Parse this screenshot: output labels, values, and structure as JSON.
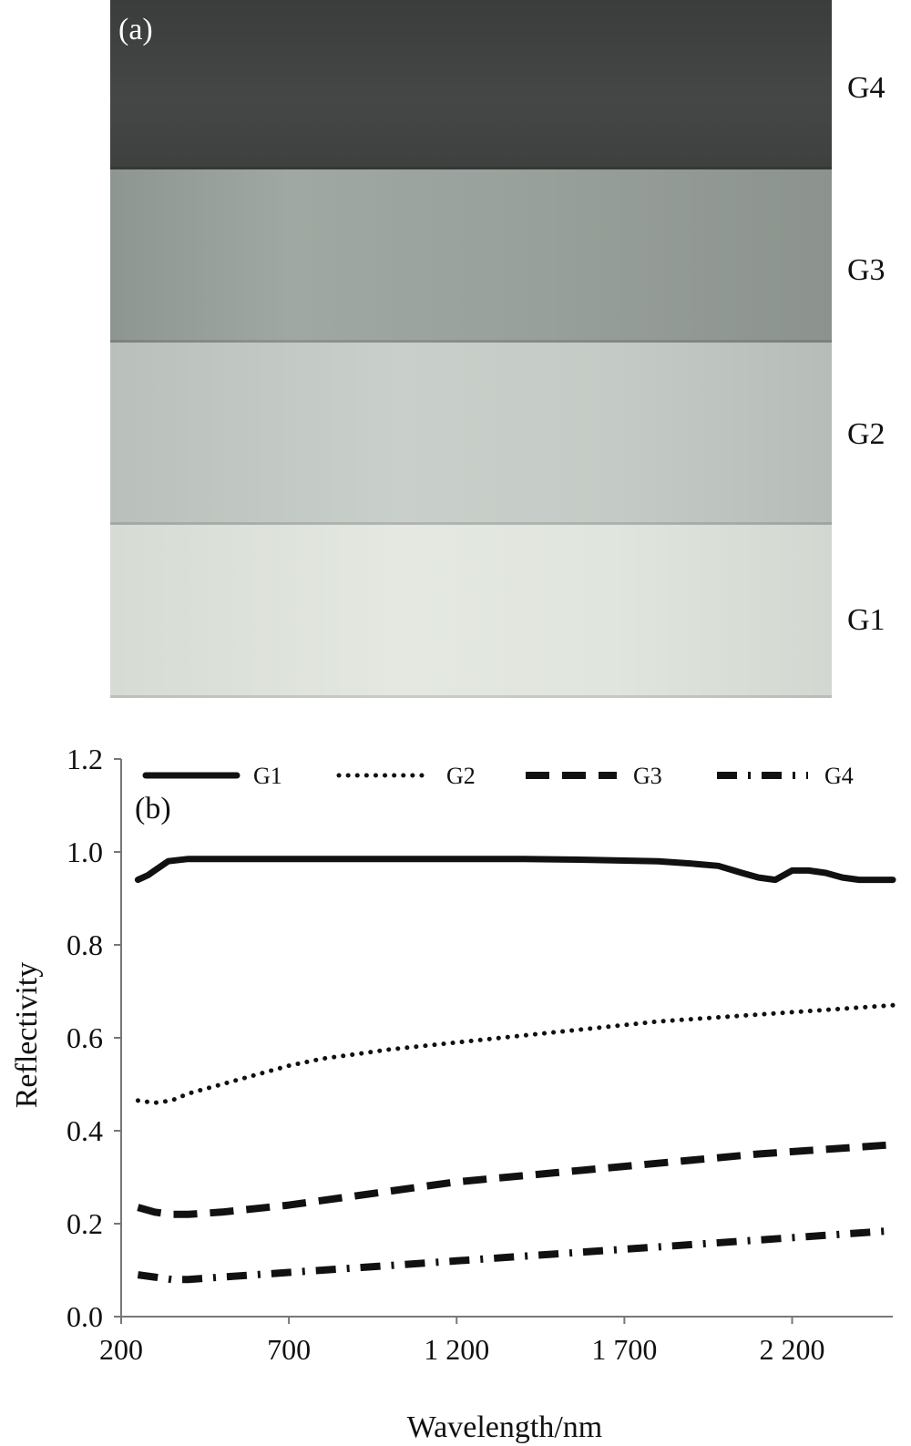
{
  "panel_a": {
    "label": "(a)",
    "samples": [
      {
        "name": "G4",
        "color": "#404341"
      },
      {
        "name": "G3",
        "color": "#98a09b"
      },
      {
        "name": "G2",
        "color": "#c3cac5"
      },
      {
        "name": "G1",
        "color": "#dfe3dc"
      }
    ]
  },
  "chart_data": {
    "type": "line",
    "panel_label": "(b)",
    "title": "",
    "xlabel": "Wavelength/nm",
    "ylabel": "Reflectivity",
    "xlim": [
      200,
      2500
    ],
    "ylim": [
      0,
      1.2
    ],
    "xticks": [
      200,
      700,
      1200,
      1700,
      2200
    ],
    "xtick_labels": [
      "200",
      "700",
      "1 200",
      "1 700",
      "2 200"
    ],
    "yticks": [
      0,
      0.2,
      0.4,
      0.6,
      0.8,
      1.0,
      1.2
    ],
    "ytick_labels": [
      "0.0",
      "0.2",
      "0.4",
      "0.6",
      "0.8",
      "1.0",
      "1.2"
    ],
    "grid": false,
    "legend": "top",
    "series": [
      {
        "name": "G1",
        "style": "solid",
        "x": [
          250,
          280,
          300,
          340,
          400,
          500,
          700,
          900,
          1200,
          1400,
          1600,
          1800,
          1900,
          1980,
          2050,
          2100,
          2150,
          2200,
          2250,
          2300,
          2350,
          2400,
          2450,
          2500
        ],
        "y": [
          0.94,
          0.95,
          0.96,
          0.98,
          0.985,
          0.985,
          0.985,
          0.985,
          0.985,
          0.985,
          0.983,
          0.98,
          0.975,
          0.97,
          0.955,
          0.945,
          0.94,
          0.96,
          0.96,
          0.955,
          0.945,
          0.94,
          0.94,
          0.94
        ]
      },
      {
        "name": "G2",
        "style": "dotted",
        "x": [
          250,
          300,
          350,
          400,
          500,
          600,
          700,
          800,
          900,
          1000,
          1200,
          1400,
          1600,
          1800,
          2000,
          2200,
          2400,
          2500
        ],
        "y": [
          0.465,
          0.46,
          0.465,
          0.48,
          0.5,
          0.52,
          0.54,
          0.555,
          0.565,
          0.575,
          0.59,
          0.605,
          0.62,
          0.635,
          0.645,
          0.655,
          0.665,
          0.67
        ]
      },
      {
        "name": "G3",
        "style": "dashed",
        "x": [
          250,
          300,
          350,
          400,
          500,
          700,
          900,
          1200,
          1500,
          1800,
          2100,
          2300,
          2500
        ],
        "y": [
          0.235,
          0.225,
          0.22,
          0.22,
          0.225,
          0.24,
          0.26,
          0.29,
          0.31,
          0.33,
          0.35,
          0.36,
          0.37
        ]
      },
      {
        "name": "G4",
        "style": "dashdot",
        "x": [
          250,
          300,
          350,
          400,
          500,
          700,
          900,
          1200,
          1500,
          1800,
          2100,
          2300,
          2500
        ],
        "y": [
          0.09,
          0.085,
          0.08,
          0.08,
          0.085,
          0.095,
          0.105,
          0.12,
          0.135,
          0.15,
          0.165,
          0.175,
          0.185
        ]
      }
    ]
  }
}
